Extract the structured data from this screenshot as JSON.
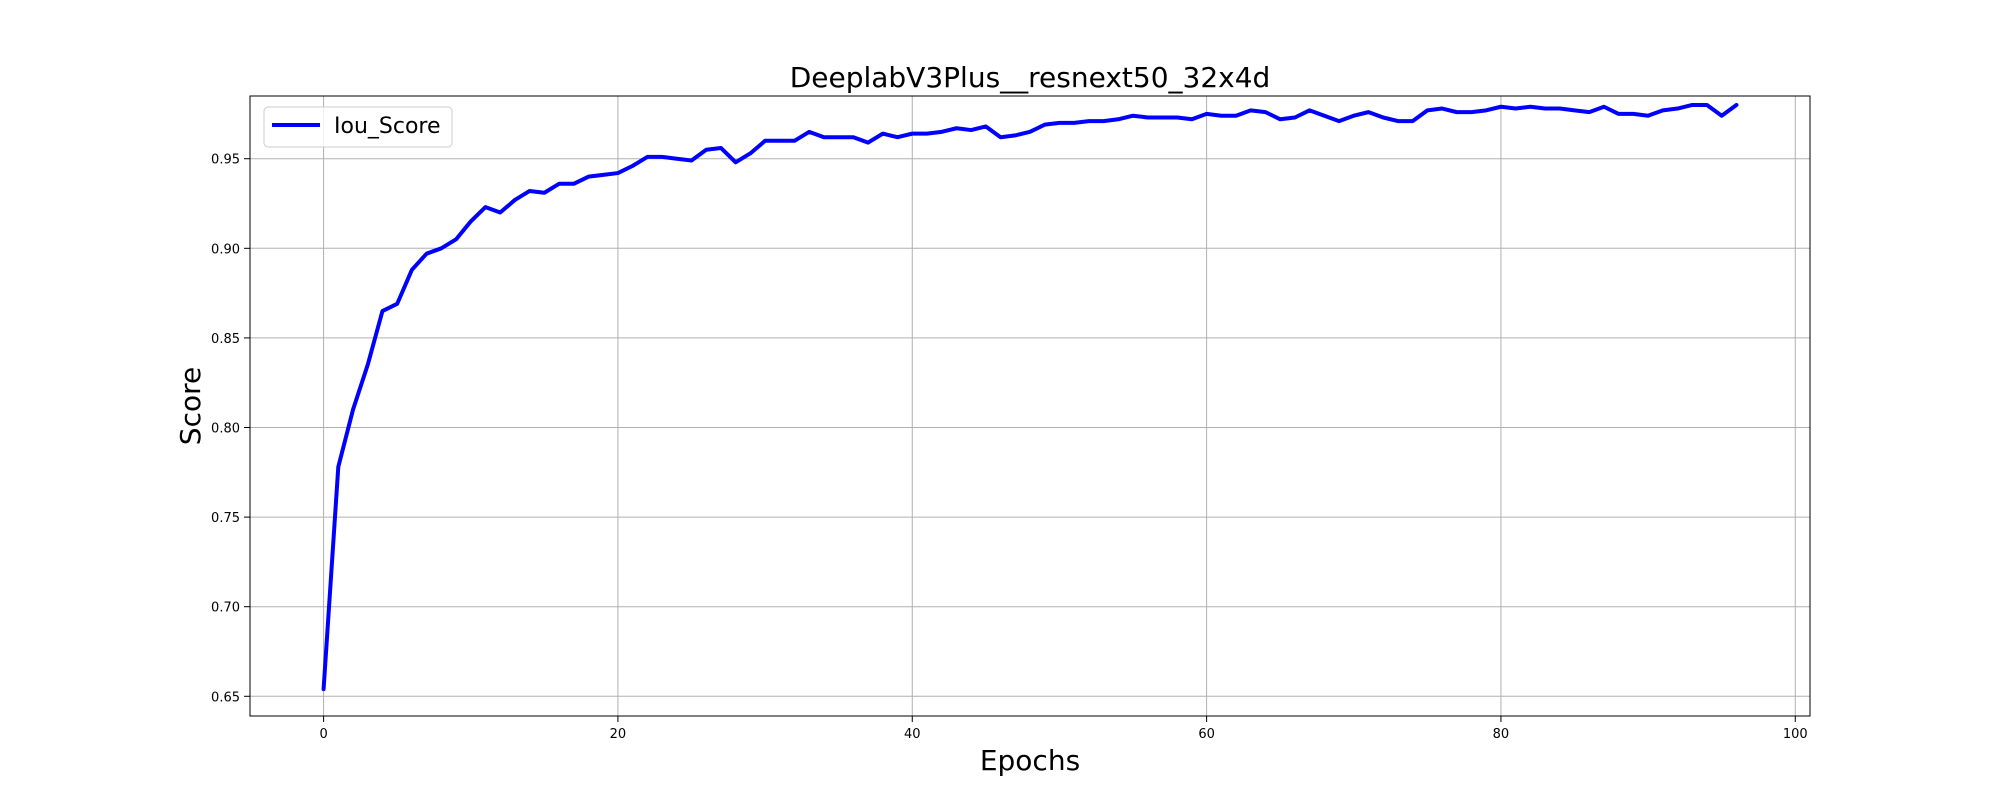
{
  "chart_data": {
    "type": "line",
    "title": "DeeplabV3Plus__resnext50_32x4d",
    "xlabel": "Epochs",
    "ylabel": "Score",
    "xlim": [
      -5,
      101
    ],
    "ylim": [
      0.639,
      0.985
    ],
    "xticks": [
      0,
      20,
      40,
      60,
      80,
      100
    ],
    "yticks": [
      0.65,
      0.7,
      0.75,
      0.8,
      0.85,
      0.9,
      0.95
    ],
    "grid": true,
    "legend_position": "top-left",
    "series": [
      {
        "name": "Iou_Score",
        "color": "#0000ff",
        "x": [
          0,
          1,
          2,
          3,
          4,
          5,
          6,
          7,
          8,
          9,
          10,
          11,
          12,
          13,
          14,
          15,
          16,
          17,
          18,
          19,
          20,
          21,
          22,
          23,
          24,
          25,
          26,
          27,
          28,
          29,
          30,
          31,
          32,
          33,
          34,
          35,
          36,
          37,
          38,
          39,
          40,
          41,
          42,
          43,
          44,
          45,
          46,
          47,
          48,
          49,
          50,
          51,
          52,
          53,
          54,
          55,
          56,
          57,
          58,
          59,
          60,
          61,
          62,
          63,
          64,
          65,
          66,
          67,
          68,
          69,
          70,
          71,
          72,
          73,
          74,
          75,
          76,
          77,
          78,
          79,
          80,
          81,
          82,
          83,
          84,
          85,
          86,
          87,
          88,
          89,
          90,
          91,
          92,
          93,
          94,
          95,
          96
        ],
        "values": [
          0.654,
          0.778,
          0.81,
          0.835,
          0.865,
          0.869,
          0.888,
          0.897,
          0.9,
          0.905,
          0.915,
          0.923,
          0.92,
          0.927,
          0.932,
          0.931,
          0.936,
          0.936,
          0.94,
          0.941,
          0.942,
          0.946,
          0.951,
          0.951,
          0.95,
          0.949,
          0.955,
          0.956,
          0.948,
          0.953,
          0.96,
          0.96,
          0.96,
          0.965,
          0.962,
          0.962,
          0.962,
          0.959,
          0.964,
          0.962,
          0.964,
          0.964,
          0.965,
          0.967,
          0.966,
          0.968,
          0.962,
          0.963,
          0.965,
          0.969,
          0.97,
          0.97,
          0.971,
          0.971,
          0.972,
          0.974,
          0.973,
          0.973,
          0.973,
          0.972,
          0.975,
          0.974,
          0.974,
          0.977,
          0.976,
          0.972,
          0.973,
          0.977,
          0.974,
          0.971,
          0.974,
          0.976,
          0.973,
          0.971,
          0.971,
          0.977,
          0.978,
          0.976,
          0.976,
          0.977,
          0.979,
          0.978,
          0.979,
          0.978,
          0.978,
          0.977,
          0.976,
          0.979,
          0.975,
          0.975,
          0.974,
          0.977,
          0.978,
          0.98,
          0.98,
          0.974,
          0.98
        ]
      }
    ]
  }
}
